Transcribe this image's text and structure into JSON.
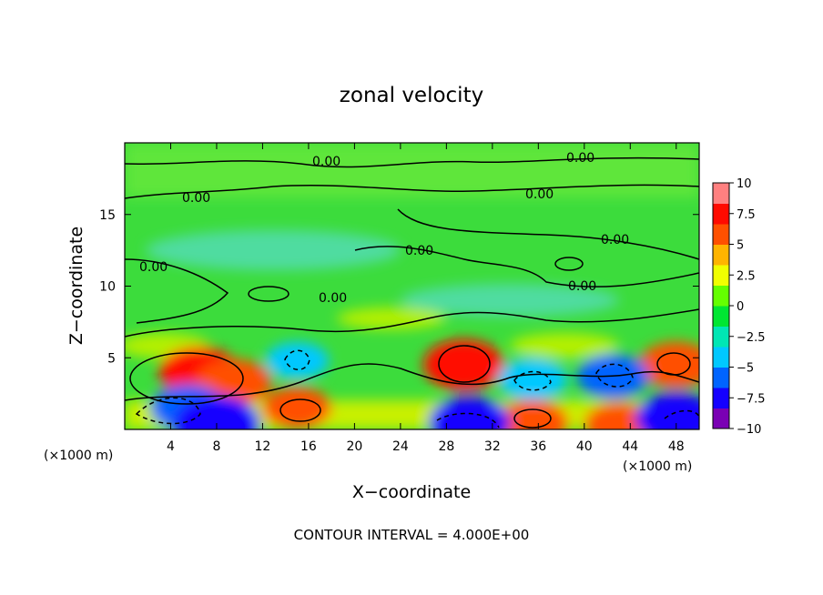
{
  "chart_data": {
    "type": "heatmap",
    "title": "zonal velocity",
    "xlabel": "X−coordinate",
    "ylabel": "Z−coordinate",
    "x_unit_left": "(×1000 m)",
    "x_unit_right": "(×1000 m)",
    "xlim": [
      0,
      50
    ],
    "ylim": [
      0,
      20
    ],
    "x_ticks": [
      4,
      8,
      12,
      16,
      20,
      24,
      28,
      32,
      36,
      40,
      44,
      48
    ],
    "x_tick_labels": [
      "4",
      "8",
      "12",
      "16",
      "20",
      "24",
      "28",
      "32",
      "36",
      "40",
      "44",
      "48"
    ],
    "y_ticks": [
      5,
      10,
      15
    ],
    "y_tick_labels": [
      "5",
      "10",
      "15"
    ],
    "colorbar": {
      "range": [
        -10,
        10
      ],
      "ticks": [
        10,
        7.5,
        5,
        2.5,
        0,
        -2.5,
        -5,
        -7.5,
        -10
      ],
      "tick_labels": [
        "10",
        "7.5",
        "5",
        "2.5",
        "0",
        "−2.5",
        "−5",
        "−7.5",
        "−10"
      ],
      "colors": [
        "#7a00b4",
        "#1400ff",
        "#0064ff",
        "#00c8ff",
        "#00e6b4",
        "#00e632",
        "#64ff00",
        "#f0ff00",
        "#ffb400",
        "#ff5000",
        "#ff0a00",
        "#ff8080"
      ]
    },
    "contour_labels": [
      "0.00",
      "0.00",
      "0.00",
      "0.00",
      "0.00",
      "0.00",
      "0.00",
      "0.00",
      "0.00"
    ],
    "features": [
      {
        "x": 6.5,
        "z": 4.0,
        "value": 7
      },
      {
        "x": 9.5,
        "z": 3.3,
        "value": 6
      },
      {
        "x": 15.0,
        "z": 1.5,
        "value": 5
      },
      {
        "x": 29.5,
        "z": 4.5,
        "value": 7
      },
      {
        "x": 35.5,
        "z": 0.5,
        "value": 5.5
      },
      {
        "x": 43.0,
        "z": 0.4,
        "value": 5
      },
      {
        "x": 48.0,
        "z": 4.5,
        "value": 6
      },
      {
        "x": 5.5,
        "z": 1.5,
        "value": -6
      },
      {
        "x": 8.0,
        "z": 0.4,
        "value": -8
      },
      {
        "x": 15.0,
        "z": 4.8,
        "value": -4
      },
      {
        "x": 30.0,
        "z": 0.5,
        "value": -7
      },
      {
        "x": 35.5,
        "z": 3.5,
        "value": -5
      },
      {
        "x": 42.5,
        "z": 3.7,
        "value": -5.5
      },
      {
        "x": 48.0,
        "z": 0.8,
        "value": -7
      }
    ],
    "grid": false
  },
  "footer": "CONTOUR INTERVAL = 4.000E+00"
}
